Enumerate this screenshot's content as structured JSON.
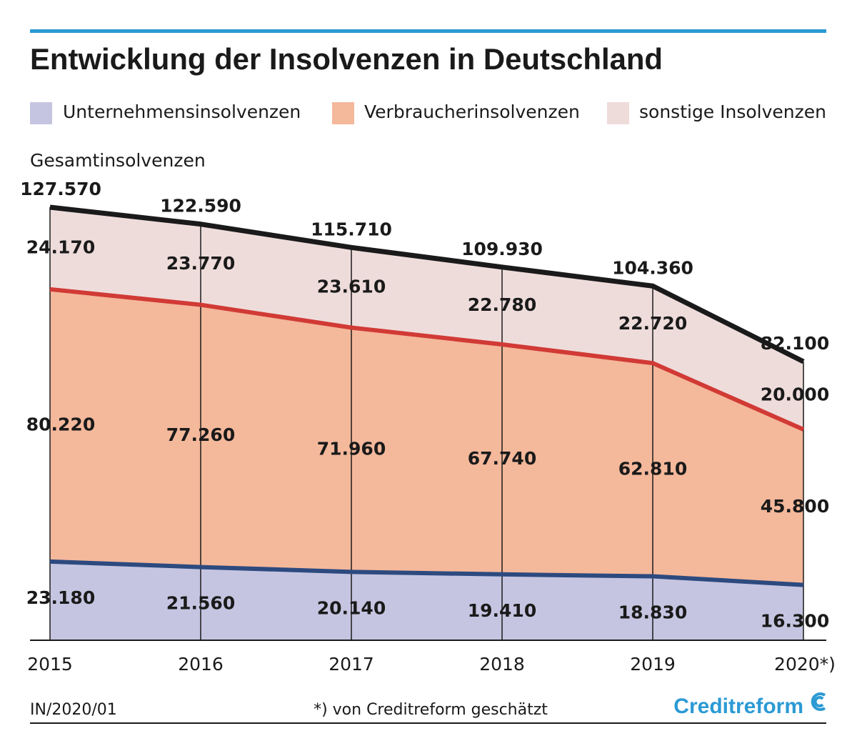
{
  "chart_data": {
    "type": "stacked_area",
    "title": "Entwicklung der Insolvenzen in Deutschland",
    "categories": [
      "2015",
      "2016",
      "2017",
      "2018",
      "2019",
      "2020*)"
    ],
    "series": [
      {
        "name": "Unternehmensinsolvenzen",
        "color": "#c6c5e1",
        "line_color": "#2d4a7f",
        "values": [
          23180,
          21560,
          20140,
          19410,
          18830,
          16300
        ],
        "value_labels": [
          "23.180",
          "21.560",
          "20.140",
          "19.410",
          "18.830",
          "16.300"
        ]
      },
      {
        "name": "Verbraucherinsolvenzen",
        "color": "#f4b89b",
        "line_color": "#d13a35",
        "values": [
          80220,
          77260,
          71960,
          67740,
          62810,
          45800
        ],
        "value_labels": [
          "80.220",
          "77.260",
          "71.960",
          "67.740",
          "62.810",
          "45.800"
        ]
      },
      {
        "name": "sonstige Insolvenzen",
        "color": "#eedcdb",
        "line_color": null,
        "values": [
          24170,
          23770,
          23610,
          22780,
          22720,
          20000
        ],
        "value_labels": [
          "24.170",
          "23.770",
          "23.610",
          "22.780",
          "22.720",
          "20.000"
        ]
      }
    ],
    "total": {
      "name": "Gesamtinsolvenzen",
      "color": "#1a1a1a",
      "values": [
        127570,
        122590,
        115710,
        109930,
        104360,
        82100
      ],
      "value_labels": [
        "127.570",
        "122.590",
        "115.710",
        "109.930",
        "104.360",
        "82.100"
      ]
    },
    "source": "IN/2020/01",
    "note": "*) von Creditreform geschätzt",
    "logo": "Creditreform"
  }
}
